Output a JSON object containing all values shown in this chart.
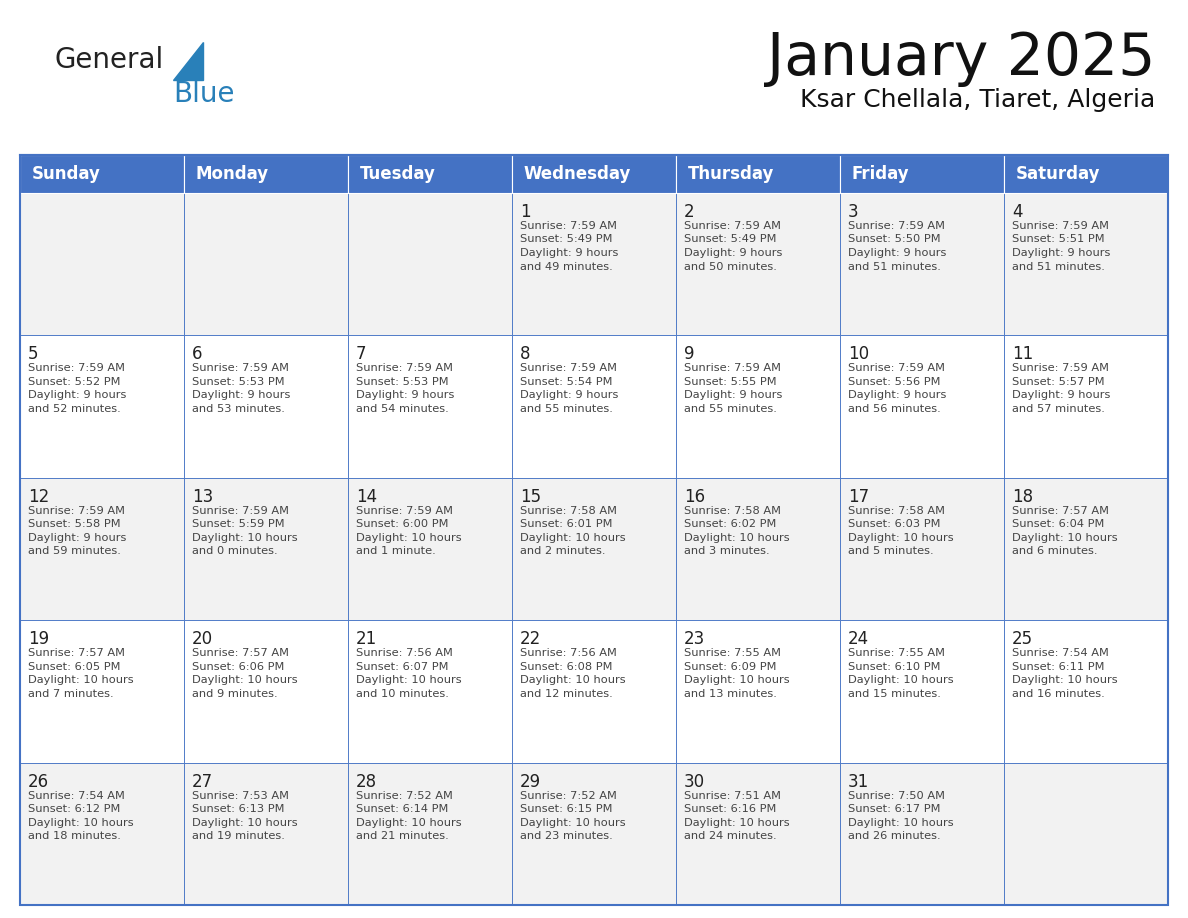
{
  "title": "January 2025",
  "subtitle": "Ksar Chellala, Tiaret, Algeria",
  "header_bg": "#4472C4",
  "header_text_color": "#FFFFFF",
  "cell_border_color": "#4472C4",
  "text_color": "#333333",
  "days_of_week": [
    "Sunday",
    "Monday",
    "Tuesday",
    "Wednesday",
    "Thursday",
    "Friday",
    "Saturday"
  ],
  "logo_general_color": "#222222",
  "logo_blue_color": "#2980B9",
  "logo_triangle_color": "#2980B9",
  "calendar_data": [
    [
      {
        "day": "",
        "sunrise": "",
        "sunset": "",
        "daylight": ""
      },
      {
        "day": "",
        "sunrise": "",
        "sunset": "",
        "daylight": ""
      },
      {
        "day": "",
        "sunrise": "",
        "sunset": "",
        "daylight": ""
      },
      {
        "day": "1",
        "sunrise": "7:59 AM",
        "sunset": "5:49 PM",
        "daylight": "9 hours and 49 minutes."
      },
      {
        "day": "2",
        "sunrise": "7:59 AM",
        "sunset": "5:49 PM",
        "daylight": "9 hours and 50 minutes."
      },
      {
        "day": "3",
        "sunrise": "7:59 AM",
        "sunset": "5:50 PM",
        "daylight": "9 hours and 51 minutes."
      },
      {
        "day": "4",
        "sunrise": "7:59 AM",
        "sunset": "5:51 PM",
        "daylight": "9 hours and 51 minutes."
      }
    ],
    [
      {
        "day": "5",
        "sunrise": "7:59 AM",
        "sunset": "5:52 PM",
        "daylight": "9 hours and 52 minutes."
      },
      {
        "day": "6",
        "sunrise": "7:59 AM",
        "sunset": "5:53 PM",
        "daylight": "9 hours and 53 minutes."
      },
      {
        "day": "7",
        "sunrise": "7:59 AM",
        "sunset": "5:53 PM",
        "daylight": "9 hours and 54 minutes."
      },
      {
        "day": "8",
        "sunrise": "7:59 AM",
        "sunset": "5:54 PM",
        "daylight": "9 hours and 55 minutes."
      },
      {
        "day": "9",
        "sunrise": "7:59 AM",
        "sunset": "5:55 PM",
        "daylight": "9 hours and 55 minutes."
      },
      {
        "day": "10",
        "sunrise": "7:59 AM",
        "sunset": "5:56 PM",
        "daylight": "9 hours and 56 minutes."
      },
      {
        "day": "11",
        "sunrise": "7:59 AM",
        "sunset": "5:57 PM",
        "daylight": "9 hours and 57 minutes."
      }
    ],
    [
      {
        "day": "12",
        "sunrise": "7:59 AM",
        "sunset": "5:58 PM",
        "daylight": "9 hours and 59 minutes."
      },
      {
        "day": "13",
        "sunrise": "7:59 AM",
        "sunset": "5:59 PM",
        "daylight": "10 hours and 0 minutes."
      },
      {
        "day": "14",
        "sunrise": "7:59 AM",
        "sunset": "6:00 PM",
        "daylight": "10 hours and 1 minute."
      },
      {
        "day": "15",
        "sunrise": "7:58 AM",
        "sunset": "6:01 PM",
        "daylight": "10 hours and 2 minutes."
      },
      {
        "day": "16",
        "sunrise": "7:58 AM",
        "sunset": "6:02 PM",
        "daylight": "10 hours and 3 minutes."
      },
      {
        "day": "17",
        "sunrise": "7:58 AM",
        "sunset": "6:03 PM",
        "daylight": "10 hours and 5 minutes."
      },
      {
        "day": "18",
        "sunrise": "7:57 AM",
        "sunset": "6:04 PM",
        "daylight": "10 hours and 6 minutes."
      }
    ],
    [
      {
        "day": "19",
        "sunrise": "7:57 AM",
        "sunset": "6:05 PM",
        "daylight": "10 hours and 7 minutes."
      },
      {
        "day": "20",
        "sunrise": "7:57 AM",
        "sunset": "6:06 PM",
        "daylight": "10 hours and 9 minutes."
      },
      {
        "day": "21",
        "sunrise": "7:56 AM",
        "sunset": "6:07 PM",
        "daylight": "10 hours and 10 minutes."
      },
      {
        "day": "22",
        "sunrise": "7:56 AM",
        "sunset": "6:08 PM",
        "daylight": "10 hours and 12 minutes."
      },
      {
        "day": "23",
        "sunrise": "7:55 AM",
        "sunset": "6:09 PM",
        "daylight": "10 hours and 13 minutes."
      },
      {
        "day": "24",
        "sunrise": "7:55 AM",
        "sunset": "6:10 PM",
        "daylight": "10 hours and 15 minutes."
      },
      {
        "day": "25",
        "sunrise": "7:54 AM",
        "sunset": "6:11 PM",
        "daylight": "10 hours and 16 minutes."
      }
    ],
    [
      {
        "day": "26",
        "sunrise": "7:54 AM",
        "sunset": "6:12 PM",
        "daylight": "10 hours and 18 minutes."
      },
      {
        "day": "27",
        "sunrise": "7:53 AM",
        "sunset": "6:13 PM",
        "daylight": "10 hours and 19 minutes."
      },
      {
        "day": "28",
        "sunrise": "7:52 AM",
        "sunset": "6:14 PM",
        "daylight": "10 hours and 21 minutes."
      },
      {
        "day": "29",
        "sunrise": "7:52 AM",
        "sunset": "6:15 PM",
        "daylight": "10 hours and 23 minutes."
      },
      {
        "day": "30",
        "sunrise": "7:51 AM",
        "sunset": "6:16 PM",
        "daylight": "10 hours and 24 minutes."
      },
      {
        "day": "31",
        "sunrise": "7:50 AM",
        "sunset": "6:17 PM",
        "daylight": "10 hours and 26 minutes."
      },
      {
        "day": "",
        "sunrise": "",
        "sunset": "",
        "daylight": ""
      }
    ]
  ]
}
